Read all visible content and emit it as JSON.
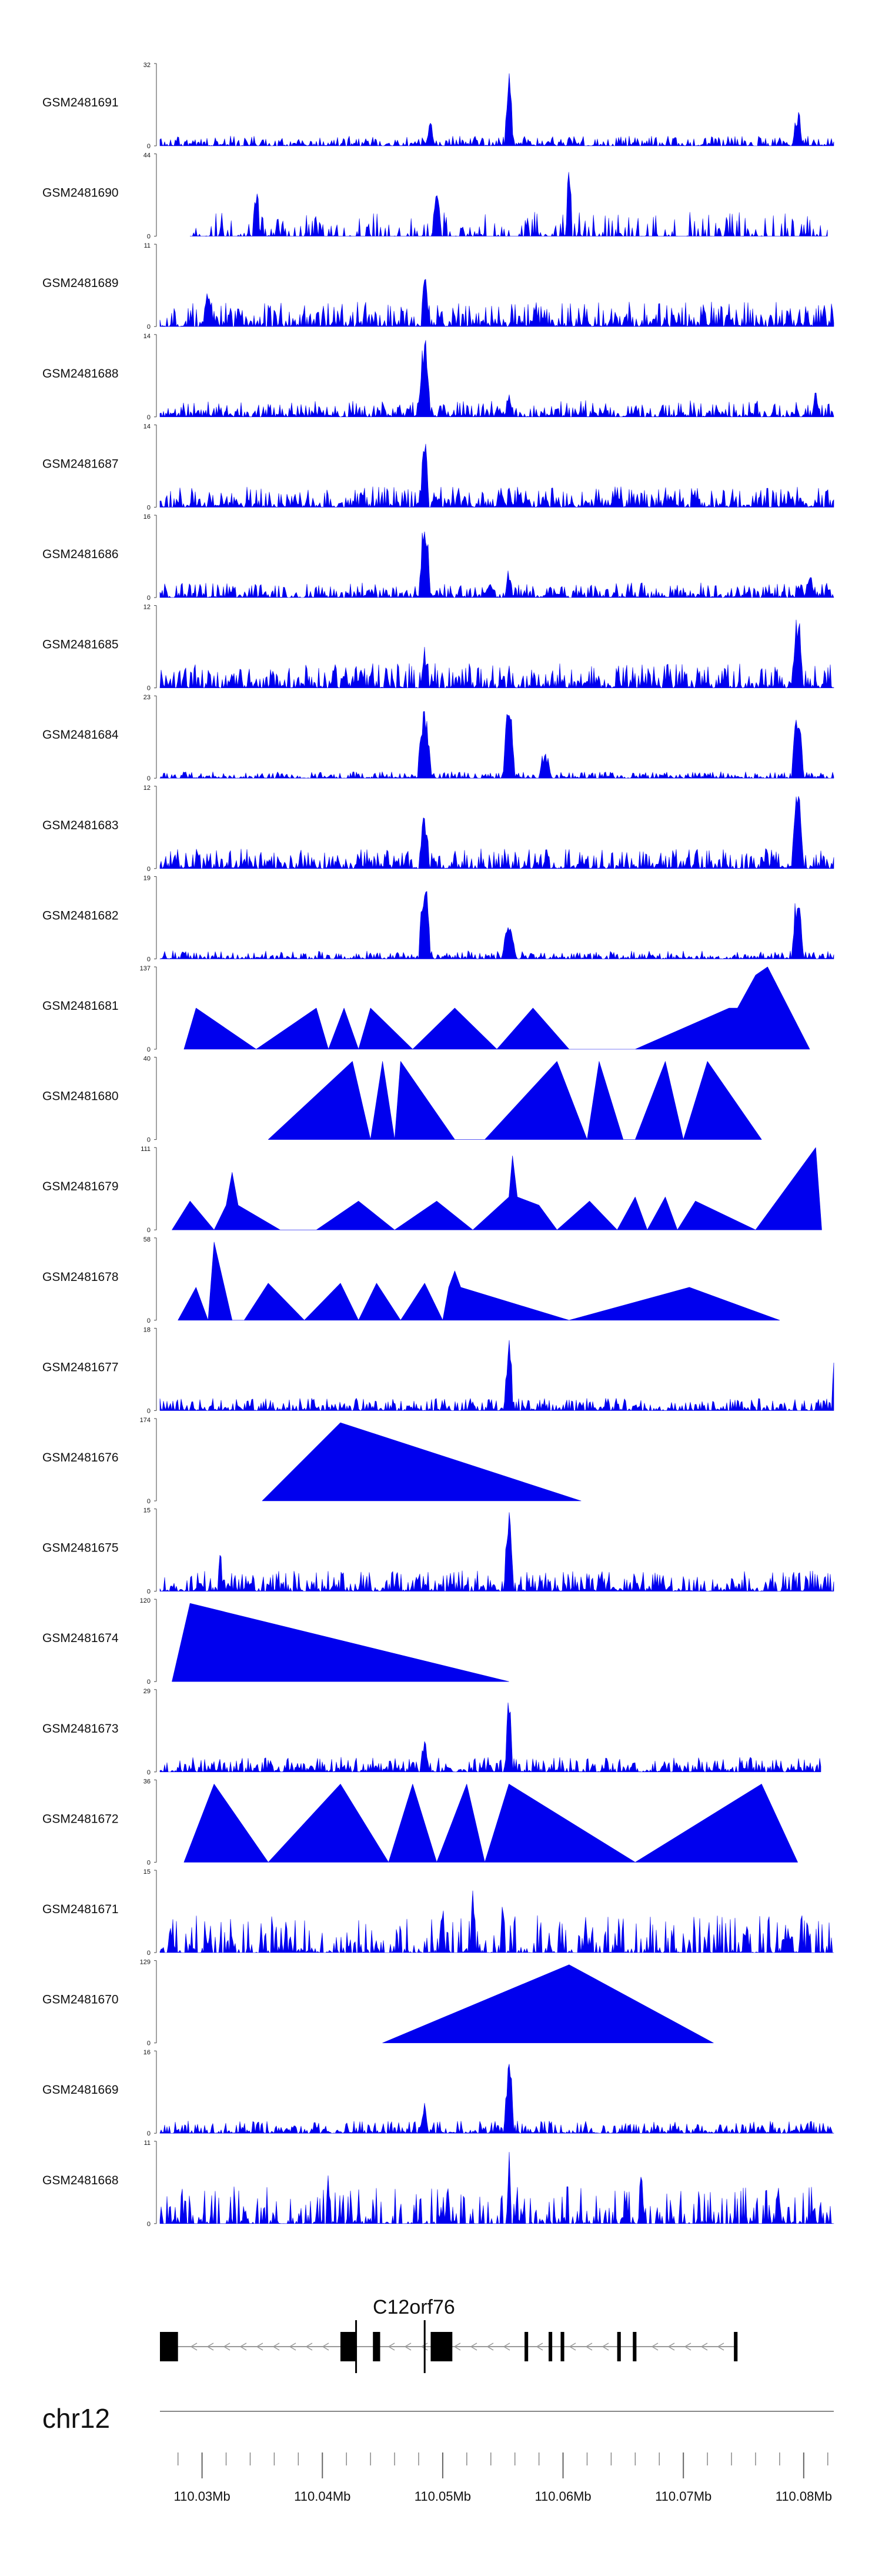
{
  "chart_data": {
    "type": "area",
    "title": "",
    "region": {
      "start_mb": 110.0265,
      "end_mb": 110.0825
    },
    "tracks": [
      {
        "name": "GSM2481691",
        "ymax": 32,
        "ymin": 0,
        "style": "noise",
        "density": 1.0,
        "base": 0.12,
        "peaks": [
          [
            110.0555,
            1.0,
            0.35
          ],
          [
            110.0795,
            0.45,
            0.4
          ],
          [
            110.049,
            0.3,
            0.3
          ]
        ]
      },
      {
        "name": "GSM2481690",
        "ymax": 44,
        "ymin": 0,
        "style": "noise",
        "density": 0.5,
        "base": 0.3,
        "start": 110.029,
        "end": 110.082,
        "peaks": [
          [
            110.0605,
            1.0,
            0.25
          ],
          [
            110.0345,
            0.7,
            0.3
          ],
          [
            110.0495,
            0.5,
            0.4
          ]
        ]
      },
      {
        "name": "GSM2481689",
        "ymax": 11,
        "ymin": 0,
        "style": "noise",
        "density": 1.0,
        "base": 0.3,
        "peaks": [
          [
            110.0485,
            1.0,
            0.3
          ],
          [
            110.0305,
            0.55,
            0.3
          ]
        ]
      },
      {
        "name": "GSM2481688",
        "ymax": 14,
        "ymin": 0,
        "style": "noise",
        "density": 1.0,
        "base": 0.2,
        "peaks": [
          [
            110.0485,
            1.0,
            0.5
          ],
          [
            110.0555,
            0.3,
            0.3
          ],
          [
            110.081,
            0.35,
            0.3
          ]
        ]
      },
      {
        "name": "GSM2481687",
        "ymax": 14,
        "ymin": 0,
        "style": "noise",
        "density": 1.0,
        "base": 0.25,
        "peaks": [
          [
            110.0485,
            1.0,
            0.35
          ]
        ]
      },
      {
        "name": "GSM2481686",
        "ymax": 16,
        "ymin": 0,
        "style": "noise",
        "density": 1.0,
        "base": 0.18,
        "peaks": [
          [
            110.0485,
            1.0,
            0.5
          ],
          [
            110.0555,
            0.35,
            0.3
          ],
          [
            110.0805,
            0.3,
            0.4
          ]
        ]
      },
      {
        "name": "GSM2481685",
        "ymax": 12,
        "ymin": 0,
        "style": "noise",
        "density": 1.0,
        "base": 0.3,
        "peaks": [
          [
            110.0795,
            1.0,
            0.4
          ],
          [
            110.0485,
            0.5,
            0.3
          ]
        ]
      },
      {
        "name": "GSM2481684",
        "ymax": 23,
        "ymin": 0,
        "style": "noise",
        "density": 1.0,
        "base": 0.08,
        "peaks": [
          [
            110.0485,
            0.85,
            0.6
          ],
          [
            110.0555,
            0.9,
            0.5
          ],
          [
            110.0795,
            0.9,
            0.5
          ],
          [
            110.0585,
            0.35,
            0.5
          ]
        ]
      },
      {
        "name": "GSM2481683",
        "ymax": 12,
        "ymin": 0,
        "style": "noise",
        "density": 1.0,
        "base": 0.25,
        "peaks": [
          [
            110.0795,
            1.0,
            0.5
          ],
          [
            110.0485,
            0.7,
            0.4
          ]
        ]
      },
      {
        "name": "GSM2481682",
        "ymax": 19,
        "ymin": 0,
        "style": "noise",
        "density": 1.0,
        "base": 0.1,
        "peaks": [
          [
            110.0485,
            1.0,
            0.5
          ],
          [
            110.0795,
            0.85,
            0.5
          ],
          [
            110.0555,
            0.4,
            0.6
          ]
        ]
      },
      {
        "name": "GSM2481681",
        "ymax": 137,
        "ymin": 0,
        "style": "triangles",
        "points": [
          [
            110.0285,
            0
          ],
          [
            110.0295,
            0.5
          ],
          [
            110.0345,
            0
          ],
          [
            110.0395,
            0.5
          ],
          [
            110.0405,
            0
          ],
          [
            110.0418,
            0.5
          ],
          [
            110.043,
            0
          ],
          [
            110.044,
            0.5
          ],
          [
            110.0475,
            0
          ],
          [
            110.051,
            0.5
          ],
          [
            110.0545,
            0
          ],
          [
            110.0575,
            0.5
          ],
          [
            110.0605,
            0
          ],
          [
            110.066,
            0
          ],
          [
            110.0738,
            0.5
          ],
          [
            110.0745,
            0.5
          ],
          [
            110.076,
            0.9
          ],
          [
            110.077,
            1.0
          ],
          [
            110.0805,
            0
          ]
        ]
      },
      {
        "name": "GSM2481680",
        "ymax": 40,
        "ymin": 0,
        "style": "triangles",
        "points": [
          [
            110.0355,
            0
          ],
          [
            110.0425,
            0.95
          ],
          [
            110.044,
            0
          ],
          [
            110.045,
            0.95
          ],
          [
            110.046,
            0
          ],
          [
            110.0465,
            0.95
          ],
          [
            110.051,
            0
          ],
          [
            110.0535,
            0
          ],
          [
            110.0595,
            0.95
          ],
          [
            110.062,
            0
          ],
          [
            110.063,
            0.95
          ],
          [
            110.065,
            0
          ],
          [
            110.066,
            0
          ],
          [
            110.0685,
            0.95
          ],
          [
            110.07,
            0
          ],
          [
            110.072,
            0.95
          ],
          [
            110.0765,
            0
          ]
        ]
      },
      {
        "name": "GSM2481679",
        "ymax": 111,
        "ymin": 0,
        "style": "triangles",
        "points": [
          [
            110.0275,
            0
          ],
          [
            110.029,
            0.35
          ],
          [
            110.031,
            0
          ],
          [
            110.032,
            0.3
          ],
          [
            110.0325,
            0.7
          ],
          [
            110.033,
            0.3
          ],
          [
            110.0365,
            0
          ],
          [
            110.0395,
            0
          ],
          [
            110.043,
            0.35
          ],
          [
            110.046,
            0
          ],
          [
            110.0495,
            0.35
          ],
          [
            110.0525,
            0
          ],
          [
            110.0555,
            0.4
          ],
          [
            110.0558,
            0.9
          ],
          [
            110.0562,
            0.4
          ],
          [
            110.058,
            0.3
          ],
          [
            110.0595,
            0
          ],
          [
            110.0622,
            0.35
          ],
          [
            110.0645,
            0
          ],
          [
            110.066,
            0.4
          ],
          [
            110.067,
            0
          ],
          [
            110.0685,
            0.4
          ],
          [
            110.0695,
            0
          ],
          [
            110.071,
            0.35
          ],
          [
            110.076,
            0
          ],
          [
            110.081,
            1.0
          ],
          [
            110.0815,
            0
          ]
        ]
      },
      {
        "name": "GSM2481678",
        "ymax": 58,
        "ymin": 0,
        "style": "triangles",
        "points": [
          [
            110.028,
            0
          ],
          [
            110.0295,
            0.4
          ],
          [
            110.0305,
            0
          ],
          [
            110.031,
            0.95
          ],
          [
            110.0325,
            0
          ],
          [
            110.0335,
            0
          ],
          [
            110.0355,
            0.45
          ],
          [
            110.0385,
            0
          ],
          [
            110.0415,
            0.45
          ],
          [
            110.043,
            0
          ],
          [
            110.0445,
            0.45
          ],
          [
            110.0465,
            0
          ],
          [
            110.0485,
            0.45
          ],
          [
            110.05,
            0
          ],
          [
            110.0505,
            0.4
          ],
          [
            110.051,
            0.6
          ],
          [
            110.0515,
            0.4
          ],
          [
            110.0605,
            0
          ],
          [
            110.0705,
            0.4
          ],
          [
            110.078,
            0
          ]
        ]
      },
      {
        "name": "GSM2481677",
        "ymax": 18,
        "ymin": 0,
        "style": "noise",
        "density": 1.0,
        "base": 0.15,
        "peaks": [
          [
            110.0555,
            1.0,
            0.35
          ],
          [
            110.0825,
            0.6,
            0.1
          ]
        ]
      },
      {
        "name": "GSM2481676",
        "ymax": 174,
        "ymin": 0,
        "style": "triangles",
        "points": [
          [
            110.035,
            0
          ],
          [
            110.0415,
            0.95
          ],
          [
            110.0615,
            0
          ]
        ]
      },
      {
        "name": "GSM2481675",
        "ymax": 15,
        "ymin": 0,
        "style": "noise",
        "density": 1.0,
        "base": 0.25,
        "peaks": [
          [
            110.0555,
            1.0,
            0.4
          ],
          [
            110.0315,
            0.6,
            0.2
          ]
        ]
      },
      {
        "name": "GSM2481674",
        "ymax": 120,
        "ymin": 0,
        "style": "triangles",
        "points": [
          [
            110.0275,
            0
          ],
          [
            110.029,
            0.95
          ],
          [
            110.0555,
            0
          ]
        ]
      },
      {
        "name": "GSM2481673",
        "ymax": 29,
        "ymin": 0,
        "style": "noise",
        "density": 1.0,
        "base": 0.18,
        "start": 110.0265,
        "end": 110.0815,
        "peaks": [
          [
            110.0555,
            1.0,
            0.3
          ],
          [
            110.0485,
            0.4,
            0.4
          ]
        ]
      },
      {
        "name": "GSM2481672",
        "ymax": 36,
        "ymin": 0,
        "style": "triangles",
        "points": [
          [
            110.0285,
            0
          ],
          [
            110.031,
            0.95
          ],
          [
            110.0355,
            0
          ],
          [
            110.0415,
            0.95
          ],
          [
            110.0455,
            0
          ],
          [
            110.0475,
            0.95
          ],
          [
            110.0495,
            0
          ],
          [
            110.052,
            0.95
          ],
          [
            110.0535,
            0
          ],
          [
            110.0555,
            0.95
          ],
          [
            110.066,
            0
          ],
          [
            110.0765,
            0.95
          ],
          [
            110.0795,
            0
          ]
        ]
      },
      {
        "name": "GSM2481671",
        "ymax": 15,
        "ymin": 0,
        "style": "noise",
        "density": 0.7,
        "base": 0.45,
        "peaks": [
          [
            110.0525,
            0.85,
            0.2
          ],
          [
            110.055,
            0.75,
            0.2
          ],
          [
            110.05,
            0.6,
            0.2
          ]
        ]
      },
      {
        "name": "GSM2481670",
        "ymax": 129,
        "ymin": 0,
        "style": "triangles",
        "points": [
          [
            110.045,
            0
          ],
          [
            110.0605,
            0.95
          ],
          [
            110.0725,
            0
          ]
        ]
      },
      {
        "name": "GSM2481669",
        "ymax": 16,
        "ymin": 0,
        "style": "noise",
        "density": 1.0,
        "base": 0.15,
        "peaks": [
          [
            110.0555,
            1.0,
            0.4
          ],
          [
            110.0485,
            0.4,
            0.3
          ]
        ]
      },
      {
        "name": "GSM2481668",
        "ymax": 11,
        "ymin": 0,
        "style": "noise",
        "density": 0.7,
        "base": 0.45,
        "peaks": [
          [
            110.0555,
            0.9,
            0.2
          ],
          [
            110.0665,
            0.9,
            0.2
          ],
          [
            110.0405,
            0.6,
            0.2
          ]
        ]
      }
    ],
    "gene": {
      "name": "C12orf76",
      "strand": "-",
      "start_mb": 110.0265,
      "end_mb": 110.0745,
      "exons_mb": [
        [
          110.0265,
          110.028
        ],
        [
          110.0415,
          110.0428
        ],
        [
          110.0442,
          110.0448
        ],
        [
          110.049,
          110.0508
        ],
        [
          110.0568,
          110.0571
        ],
        [
          110.0588,
          110.0591
        ],
        [
          110.0598,
          110.0601
        ],
        [
          110.0645,
          110.0648
        ],
        [
          110.0658,
          110.0661
        ],
        [
          110.0742,
          110.0745
        ]
      ],
      "tss_mb": [
        110.0428,
        110.0485
      ]
    },
    "chromosome": "chr12",
    "axis": {
      "major_ticks": [
        110.03,
        110.04,
        110.05,
        110.06,
        110.07,
        110.08
      ],
      "major_labels": [
        "110.03Mb",
        "110.04Mb",
        "110.05Mb",
        "110.06Mb",
        "110.07Mb",
        "110.08Mb"
      ],
      "minor_step": 0.002
    }
  },
  "colors": {
    "signal": "#0000ee",
    "axis": "#444444",
    "gene": "#000000",
    "intron": "#999999"
  }
}
